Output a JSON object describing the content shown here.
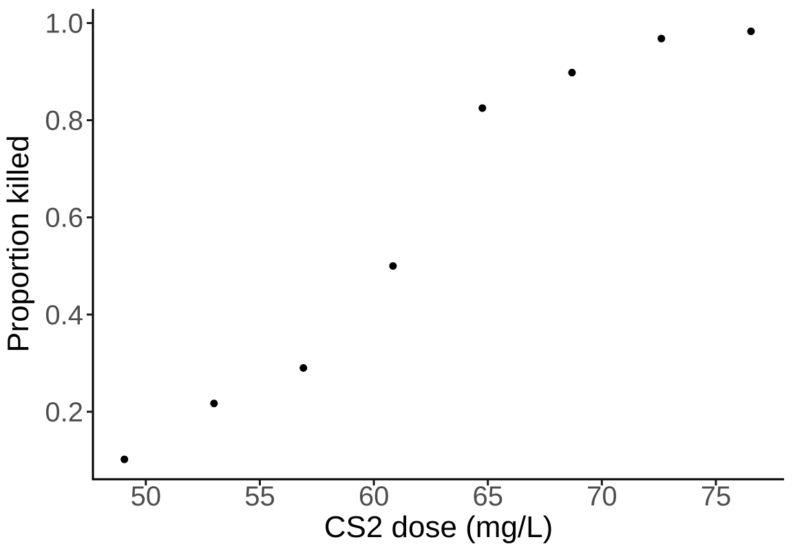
{
  "chart_data": {
    "type": "scatter",
    "title": "",
    "xlabel": "CS2 dose (mg/L)",
    "ylabel": "Proportion killed",
    "x": [
      49.06,
      52.99,
      56.91,
      60.84,
      64.76,
      68.69,
      72.61,
      76.54
    ],
    "y": [
      0.102,
      0.217,
      0.29,
      0.5,
      0.825,
      0.898,
      0.968,
      0.983
    ],
    "xticks": [
      50,
      55,
      60,
      65,
      70,
      75
    ],
    "xticklabels": [
      "50",
      "55",
      "60",
      "65",
      "70",
      "75"
    ],
    "yticks": [
      0.2,
      0.4,
      0.6,
      0.8,
      1.0
    ],
    "yticklabels": [
      "0.2",
      "0.4",
      "0.6",
      "0.8",
      "1.0"
    ],
    "xlim": [
      47.68,
      77.99
    ],
    "ylim": [
      0.061,
      1.029
    ],
    "grid": false,
    "legend": "none",
    "background_color": "#ffffff",
    "point_color": "#000000",
    "point_radius": 5.5,
    "axis_color": "#000000",
    "tick_color": "#1a1a1a",
    "tick_label_color": "#4d4d4d",
    "axis_title_color": "#000000"
  }
}
